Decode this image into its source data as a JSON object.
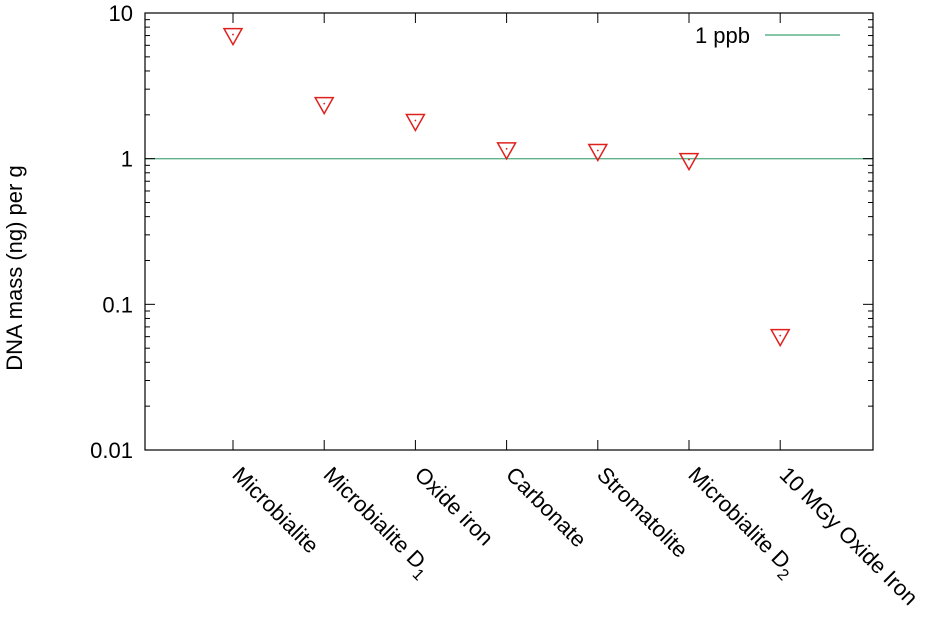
{
  "chart_data": {
    "type": "scatter",
    "title": "",
    "xlabel": "",
    "ylabel": "DNA mass (ng) per g",
    "yscale": "log",
    "ylim": [
      0.01,
      10
    ],
    "yticks": [
      {
        "value": 0.01,
        "label": "0.01"
      },
      {
        "value": 0.1,
        "label": "0.1"
      },
      {
        "value": 1,
        "label": "1"
      },
      {
        "value": 10,
        "label": "10"
      }
    ],
    "categories": [
      {
        "label": "Microbialite",
        "sub": ""
      },
      {
        "label": "Microbialite D",
        "sub": "1"
      },
      {
        "label": "Oxide iron",
        "sub": ""
      },
      {
        "label": "Carbonate",
        "sub": ""
      },
      {
        "label": "Stromatolite",
        "sub": ""
      },
      {
        "label": "Microbialite D",
        "sub": "2"
      },
      {
        "label": "10 MGy Oxide Iron",
        "sub": ""
      }
    ],
    "values": [
      7.0,
      2.35,
      1.8,
      1.15,
      1.12,
      0.97,
      0.06
    ],
    "marker": "triangle-down-open",
    "marker_color": "#e0201c",
    "reference_line": {
      "value": 1,
      "label": "1 ppb",
      "color": "#5fb28a"
    },
    "legend_position": "top-right",
    "grid": false
  }
}
